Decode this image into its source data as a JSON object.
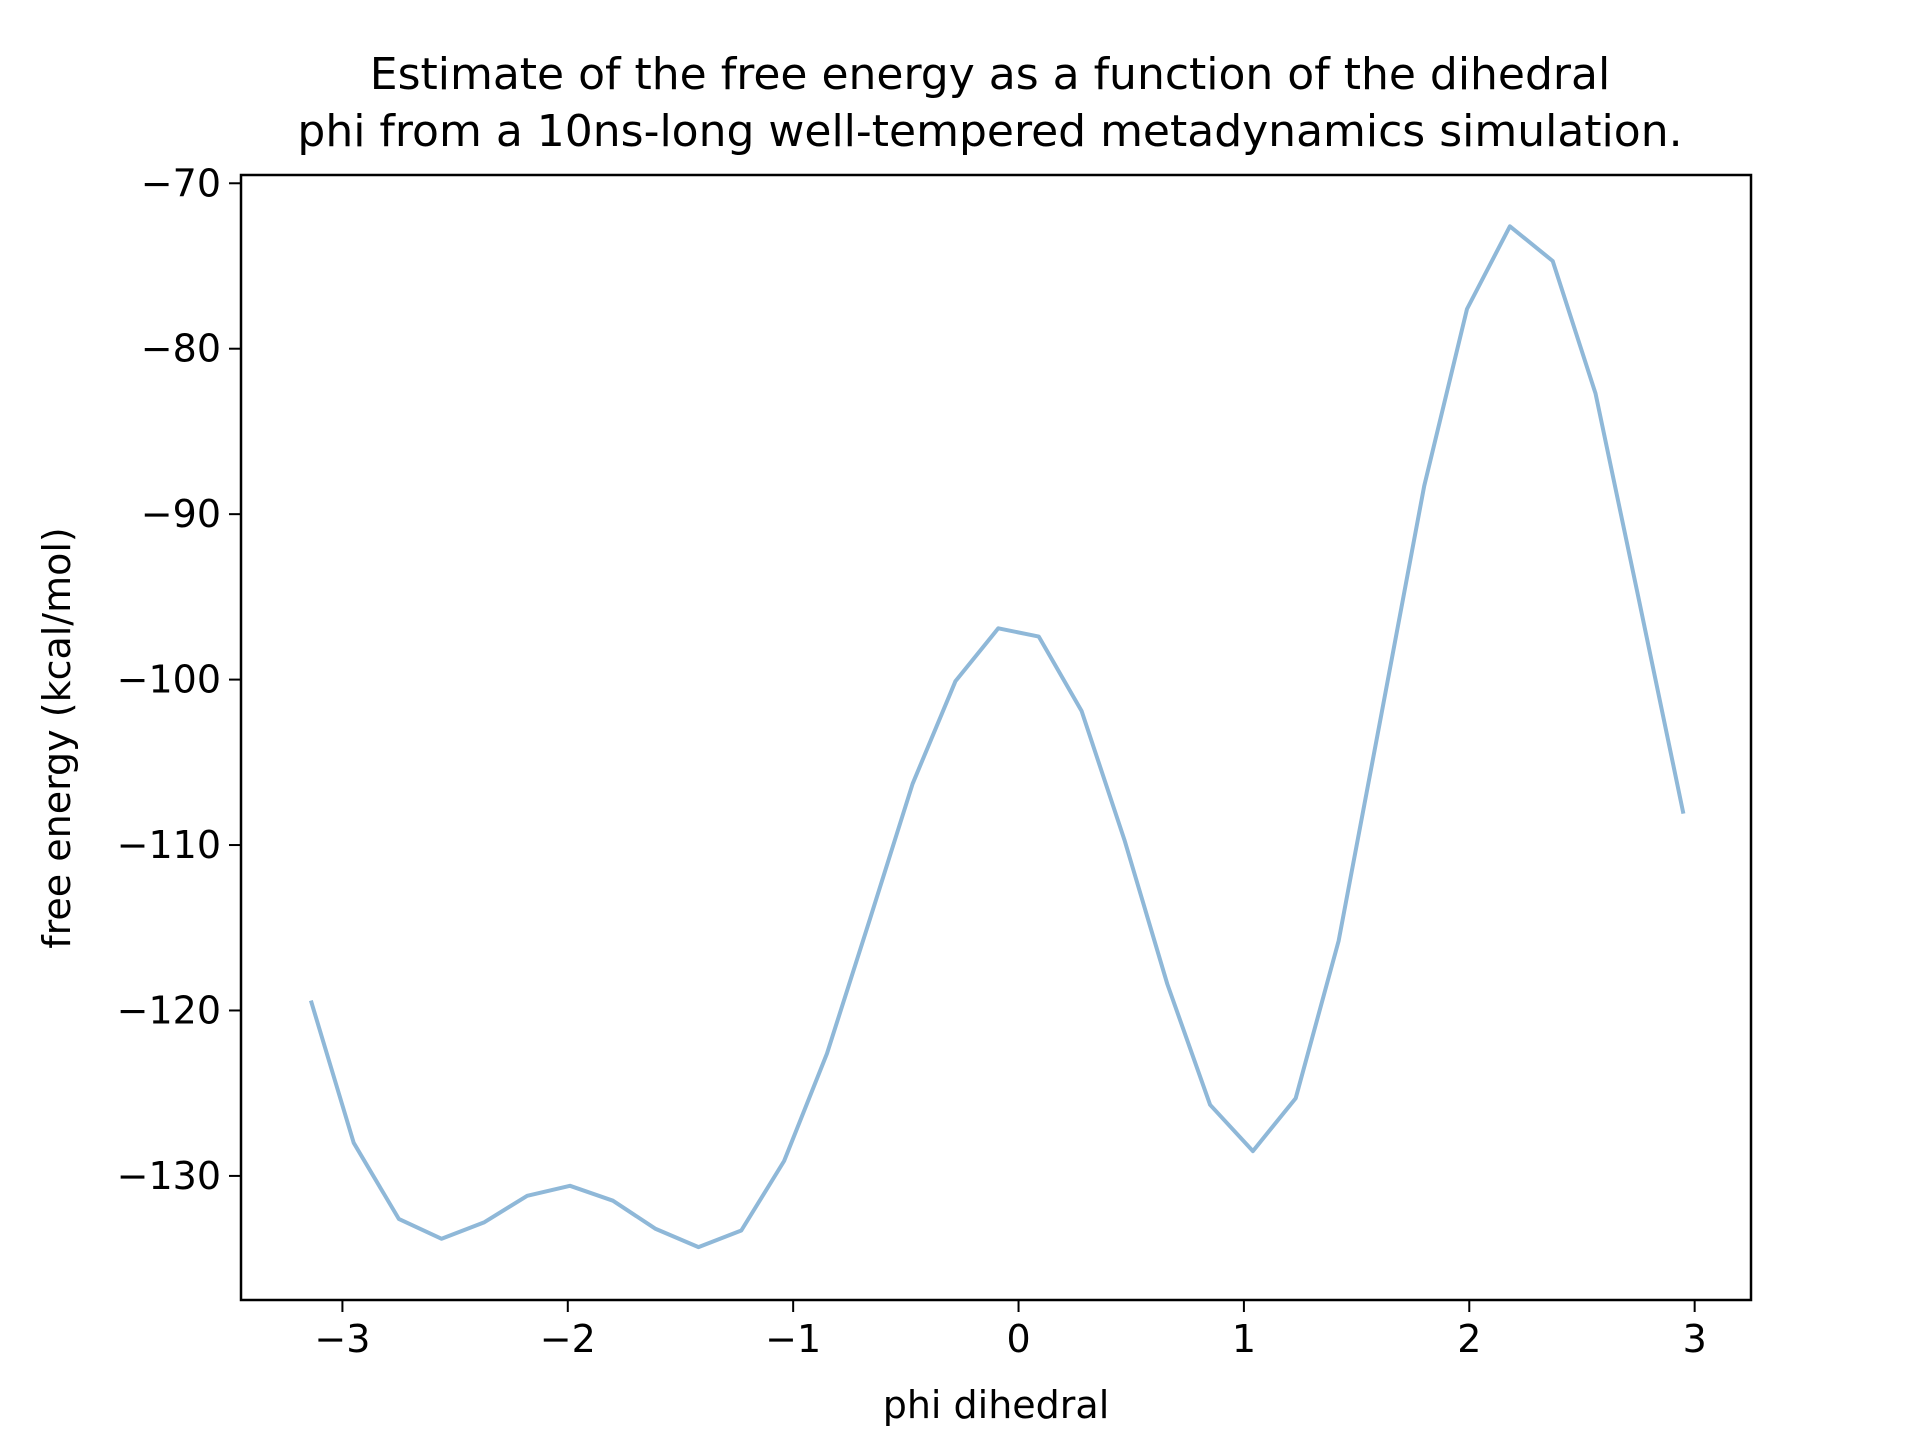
{
  "chart_data": {
    "type": "line",
    "title": "Estimate of the free energy as a function of the dihedral\nphi from a 10ns-long well-tempered metadynamics simulation.",
    "title_lines": [
      "Estimate of the free energy as a function of the dihedral",
      "phi from a 10ns-long well-tempered metadynamics simulation."
    ],
    "xlabel": "phi dihedral",
    "ylabel": "free energy (kcal/mol)",
    "xlim": [
      -3.45,
      3.25
    ],
    "ylim": [
      -137.5,
      -69.5
    ],
    "xticks": [
      -3,
      -2,
      -1,
      0,
      1,
      2,
      3
    ],
    "xtick_labels": [
      "−3",
      "−2",
      "−1",
      "0",
      "1",
      "2",
      "3"
    ],
    "yticks": [
      -130,
      -120,
      -110,
      -100,
      -90,
      -80,
      -70
    ],
    "ytick_labels": [
      "−130",
      "−120",
      "−110",
      "−100",
      "−90",
      "−80",
      "−70"
    ],
    "grid": false,
    "line_color": "#8fb8d8",
    "series": [
      {
        "x": [
          -3.14,
          -2.95,
          -2.75,
          -2.56,
          -2.37,
          -2.18,
          -1.99,
          -1.8,
          -1.61,
          -1.42,
          -1.23,
          -1.04,
          -0.85,
          -0.66,
          -0.47,
          -0.28,
          -0.09,
          0.09,
          0.28,
          0.47,
          0.66,
          0.85,
          1.04,
          1.23,
          1.42,
          1.61,
          1.8,
          1.99,
          2.18,
          2.37,
          2.56,
          2.75,
          2.95
        ],
        "y": [
          -119.4,
          -128.0,
          -132.6,
          -133.8,
          -132.8,
          -131.2,
          -130.6,
          -131.5,
          -133.2,
          -134.3,
          -133.3,
          -129.1,
          -122.6,
          -114.5,
          -106.3,
          -100.1,
          -96.9,
          -97.4,
          -101.9,
          -109.7,
          -118.4,
          -125.7,
          -128.5,
          -125.3,
          -115.8,
          -102.1,
          -88.3,
          -77.6,
          -72.6,
          -74.7,
          -82.7,
          -95.0,
          -108.1
        ]
      }
    ]
  }
}
